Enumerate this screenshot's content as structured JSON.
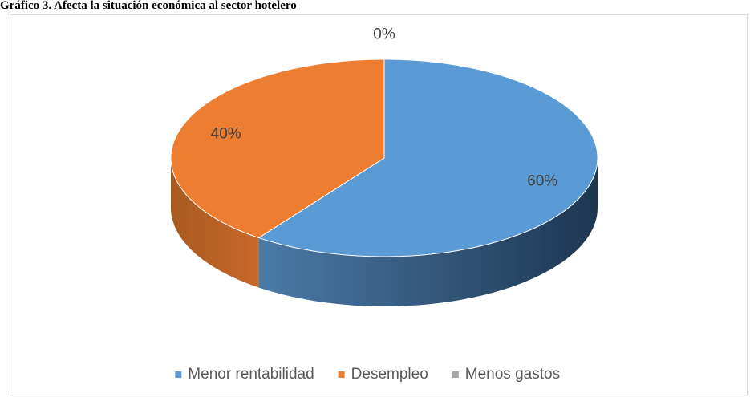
{
  "chart_data": {
    "type": "pie",
    "title": "Gráfico 3.  Afecta la situación económica al sector hotelero",
    "categories": [
      "Menor rentabilidad",
      "Desempleo",
      "Menos gastos"
    ],
    "values": [
      60,
      40,
      0
    ],
    "value_labels": [
      "60%",
      "40%",
      "0%"
    ],
    "colors": [
      "#5b9bd5",
      "#ed7d31",
      "#a5a5a5"
    ],
    "legend": "bottom"
  }
}
